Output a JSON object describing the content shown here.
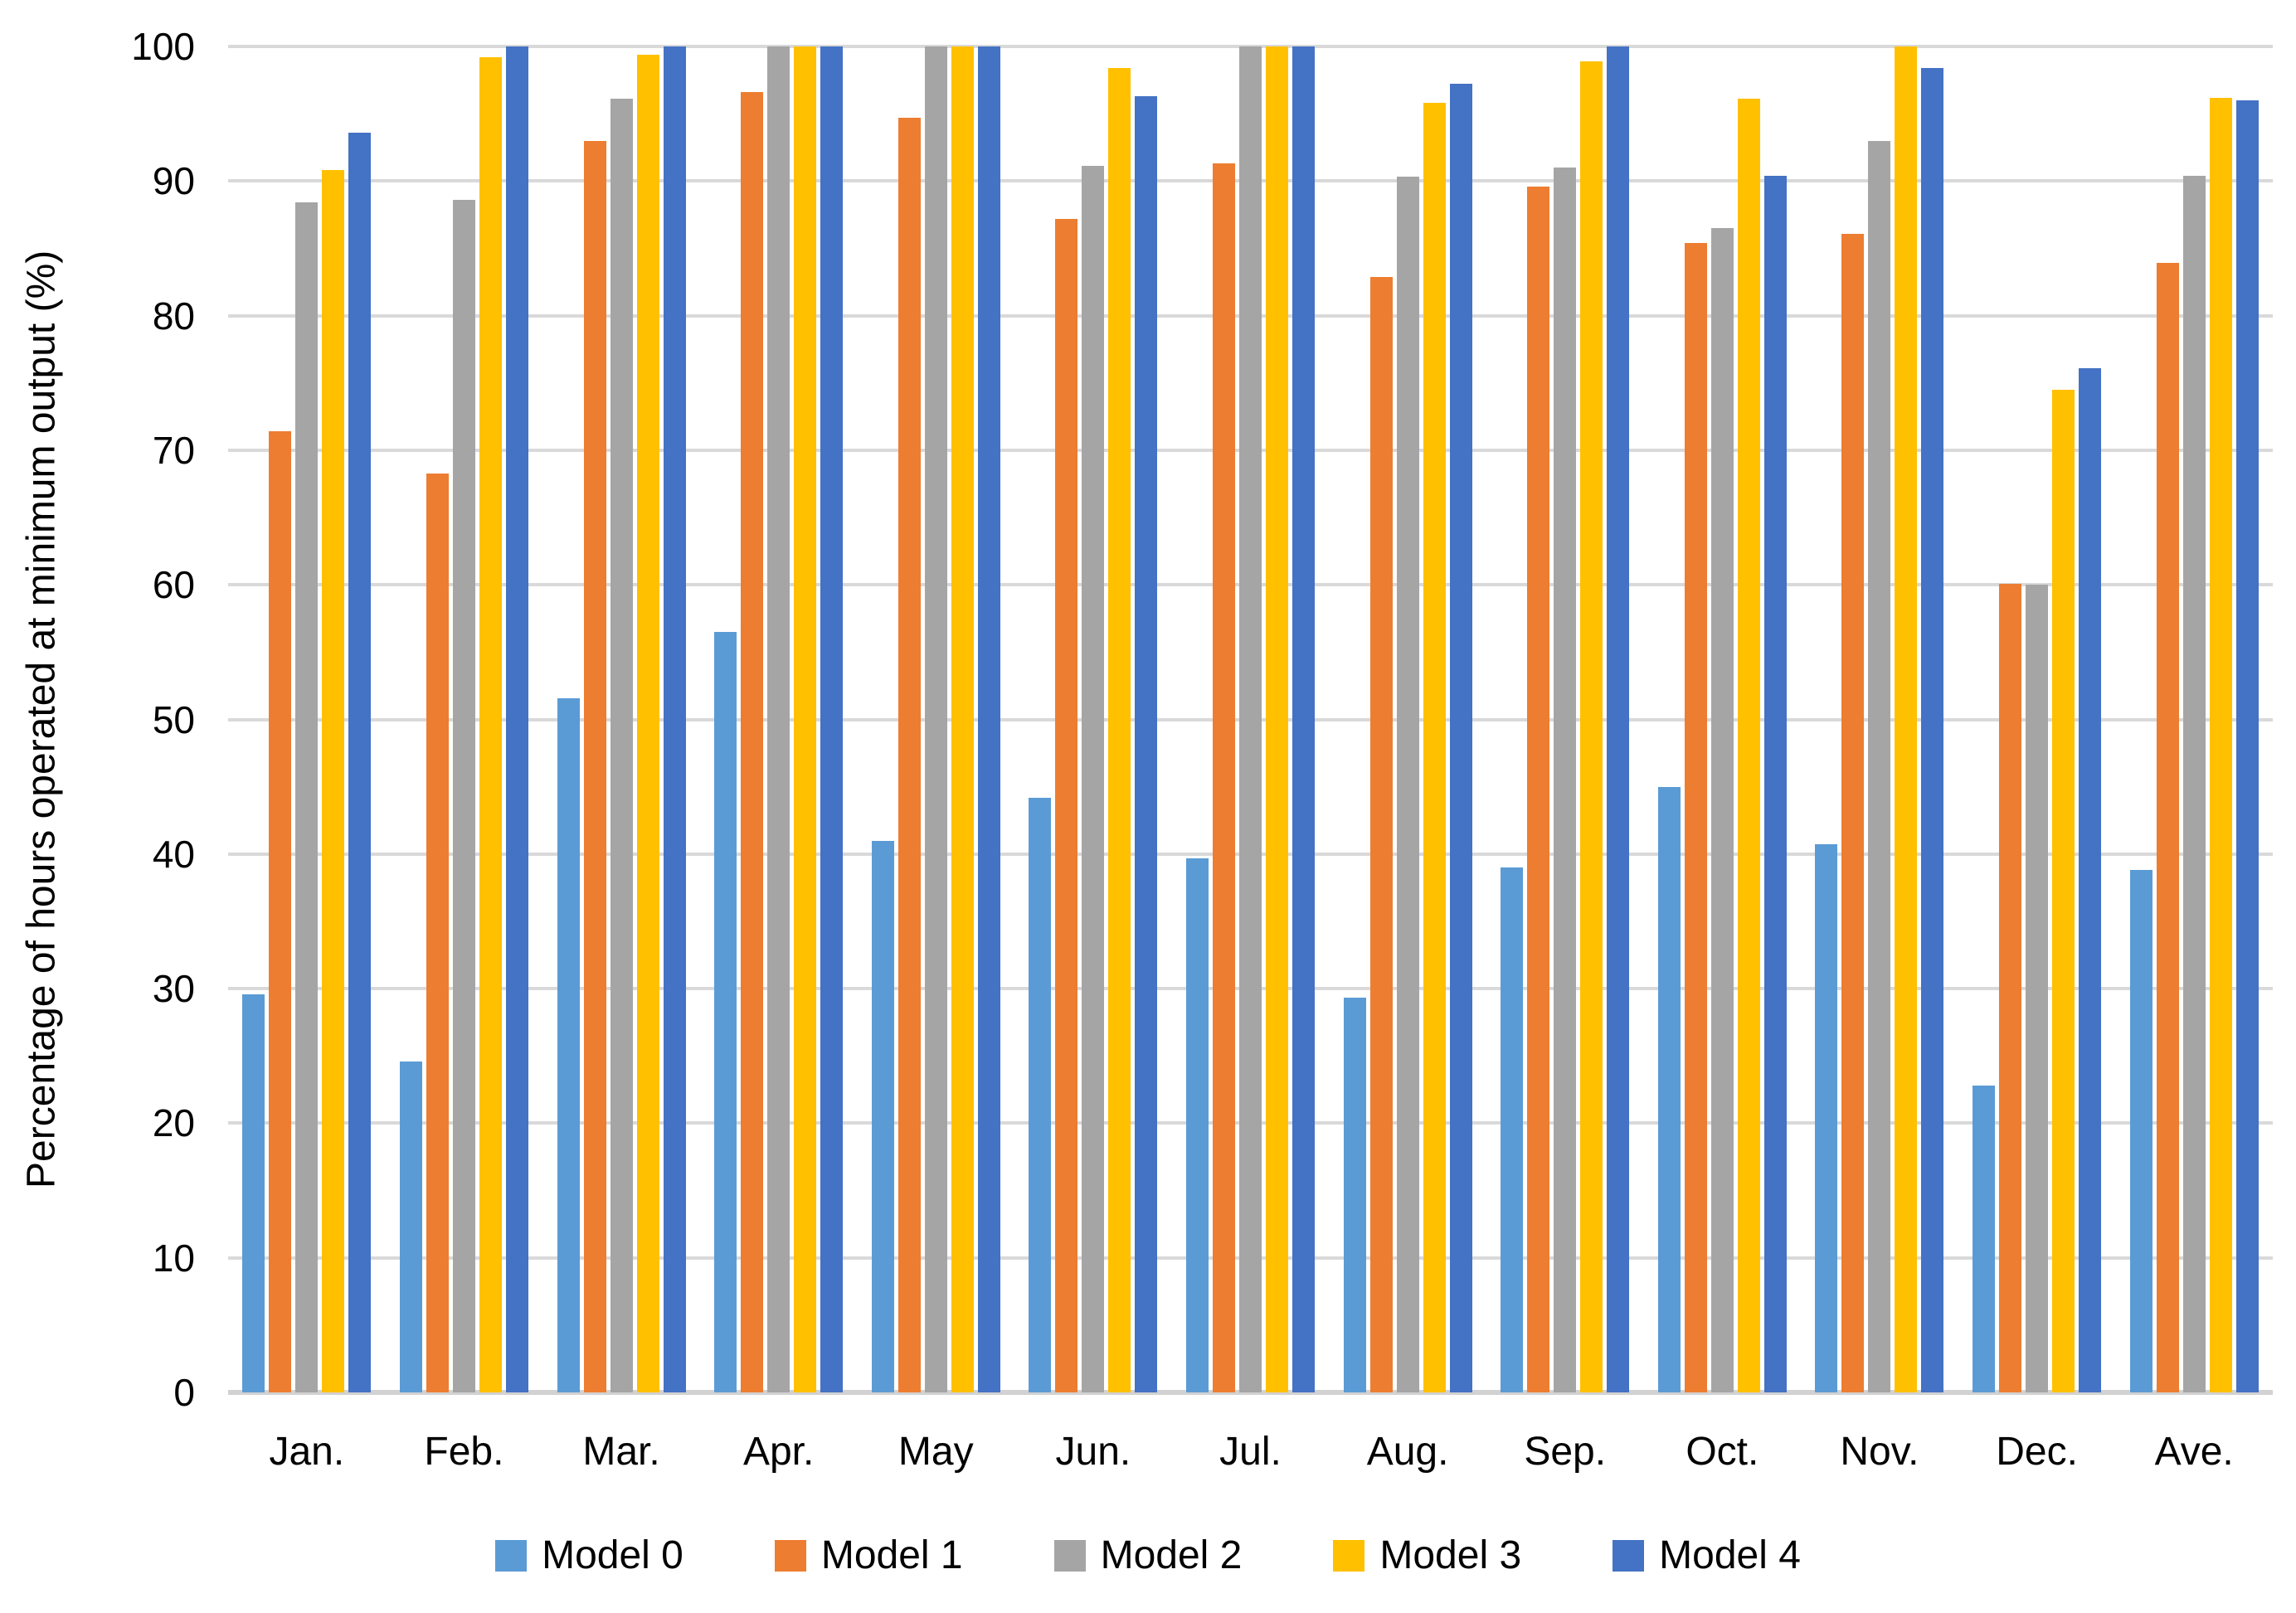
{
  "chart_data": {
    "type": "bar",
    "title": "",
    "xlabel": "",
    "ylabel": "Percentage of hours operated at minimum output (%)",
    "ylim": [
      0,
      100
    ],
    "ytick_step": 10,
    "grid": true,
    "legend_position": "bottom",
    "categories": [
      "Jan.",
      "Feb.",
      "Mar.",
      "Apr.",
      "May",
      "Jun.",
      "Jul.",
      "Aug.",
      "Sep.",
      "Oct.",
      "Nov.",
      "Dec.",
      "Ave."
    ],
    "series": [
      {
        "name": "Model 0",
        "color": "#5B9BD5",
        "values": [
          29.6,
          24.6,
          51.6,
          56.5,
          41.0,
          44.2,
          39.7,
          29.3,
          39.0,
          45.0,
          40.7,
          22.8,
          38.8
        ]
      },
      {
        "name": "Model 1",
        "color": "#ED7D31",
        "values": [
          71.4,
          68.3,
          93.0,
          96.6,
          94.7,
          87.2,
          91.3,
          82.9,
          89.6,
          85.4,
          86.1,
          60.1,
          83.9
        ]
      },
      {
        "name": "Model 2",
        "color": "#A5A5A5",
        "values": [
          88.4,
          88.6,
          96.1,
          100,
          100,
          91.1,
          100,
          90.3,
          91.0,
          86.5,
          93.0,
          60.0,
          90.4
        ]
      },
      {
        "name": "Model 3",
        "color": "#FFC000",
        "values": [
          90.8,
          99.2,
          99.4,
          100,
          100,
          98.4,
          100,
          95.8,
          98.9,
          96.1,
          100,
          74.5,
          96.2
        ]
      },
      {
        "name": "Model 4",
        "color": "#4472C4",
        "values": [
          93.6,
          100,
          100,
          100,
          100,
          96.3,
          100,
          97.2,
          100,
          90.4,
          98.4,
          76.1,
          96.0
        ]
      }
    ]
  },
  "colors": {
    "gridline": "#D9D9D9",
    "baseline": "#D2D2D2",
    "text": "#000000",
    "background": "#FFFFFF"
  }
}
